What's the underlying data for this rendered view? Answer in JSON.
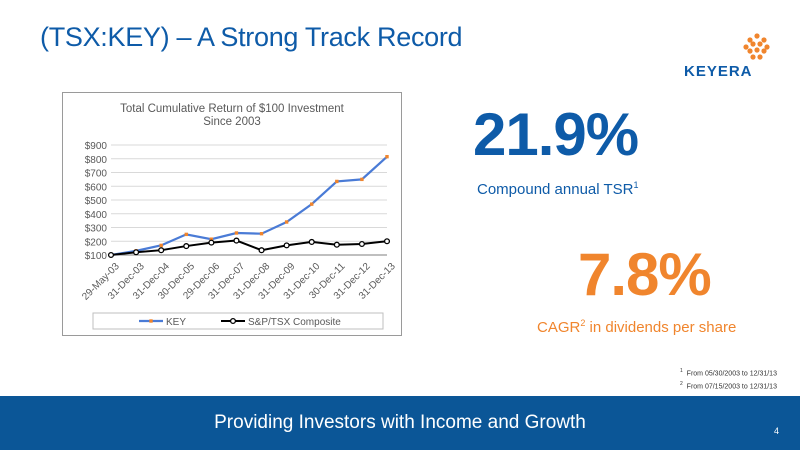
{
  "slide": {
    "title": "(TSX:KEY) – A Strong Track Record",
    "logo_text": "KEYERA",
    "page_number": "4",
    "footer": "Providing Investors with Income and Growth"
  },
  "metrics": {
    "tsr_value": "21.9%",
    "tsr_label": "Compound annual TSR",
    "tsr_sup": "1",
    "div_value": "7.8%",
    "div_label_pre": "CAGR",
    "div_sup": "2",
    "div_label_post": " in dividends per share"
  },
  "footnotes": {
    "one": "From 05/30/2003 to 12/31/13",
    "two": "From 07/15/2003 to 12/31/13",
    "one_mark": "1",
    "two_mark": "2"
  },
  "colors": {
    "brand_blue": "#0e5ba8",
    "brand_orange": "#f0852d",
    "footer_bg": "#0b5697",
    "key_line": "#4a7bd6",
    "key_marker": "#f0852d",
    "index_line": "#000000"
  },
  "chart_data": {
    "type": "line",
    "title_line1": "Total Cumulative Return of $100 Investment",
    "title_line2": "Since 2003",
    "categories": [
      "29-May-03",
      "31-Dec-03",
      "31-Dec-04",
      "30-Dec-05",
      "29-Dec-06",
      "31-Dec-07",
      "31-Dec-08",
      "31-Dec-09",
      "31-Dec-10",
      "30-Dec-11",
      "31-Dec-12",
      "31-Dec-13"
    ],
    "y_ticks": [
      "$100",
      "$200",
      "$300",
      "$400",
      "$500",
      "$600",
      "$700",
      "$800",
      "$900"
    ],
    "ylim": [
      100,
      900
    ],
    "grid": true,
    "legend_position": "bottom",
    "series": [
      {
        "name": "KEY",
        "values": [
          100,
          130,
          170,
          250,
          215,
          260,
          255,
          340,
          470,
          635,
          650,
          815
        ]
      },
      {
        "name": "S&P/TSX Composite",
        "values": [
          100,
          120,
          135,
          165,
          190,
          205,
          135,
          170,
          195,
          175,
          180,
          200
        ]
      }
    ]
  }
}
